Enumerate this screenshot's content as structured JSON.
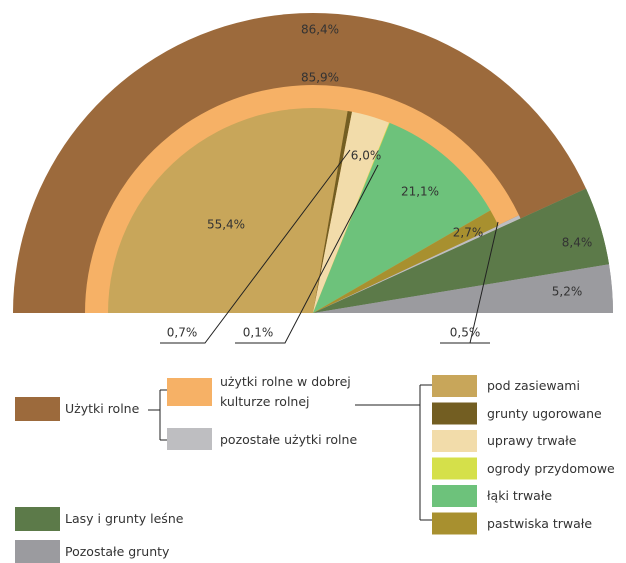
{
  "chart_data": {
    "type": "nested-semi-pie",
    "outer": {
      "categories": [
        "Użytki rolne",
        "Lasy i grunty leśne",
        "Pozostałe grunty"
      ],
      "values": [
        86.4,
        8.4,
        5.2
      ],
      "value_labels": [
        "86,4%",
        "8,4%",
        "5,2%"
      ],
      "colors": [
        "#9c6a3c",
        "#5c7a49",
        "#9b9b9f"
      ]
    },
    "middle": {
      "categories": [
        "użytki rolne w dobrej kulturze rolnej",
        "pozostałe użytki rolne"
      ],
      "values": [
        85.9,
        0.5
      ],
      "value_labels": [
        "85,9%",
        "0,5%"
      ],
      "colors": [
        "#f6b166",
        "#bebec1"
      ]
    },
    "inner": {
      "categories": [
        "pod zasiewami",
        "grunty ugorowane",
        "uprawy trwałe",
        "ogrody przydomowe",
        "łąki trwałe",
        "pastwiska trwałe"
      ],
      "values": [
        55.4,
        0.7,
        6.0,
        0.1,
        21.1,
        2.7
      ],
      "value_labels": [
        "55,4%",
        "0,7%",
        "6,0%",
        "0,1%",
        "21,1%",
        "2,7%"
      ],
      "colors": [
        "#c8a65a",
        "#735e22",
        "#f2dcaa",
        "#d5e04a",
        "#6dc27b",
        "#a8902f"
      ]
    }
  }
}
